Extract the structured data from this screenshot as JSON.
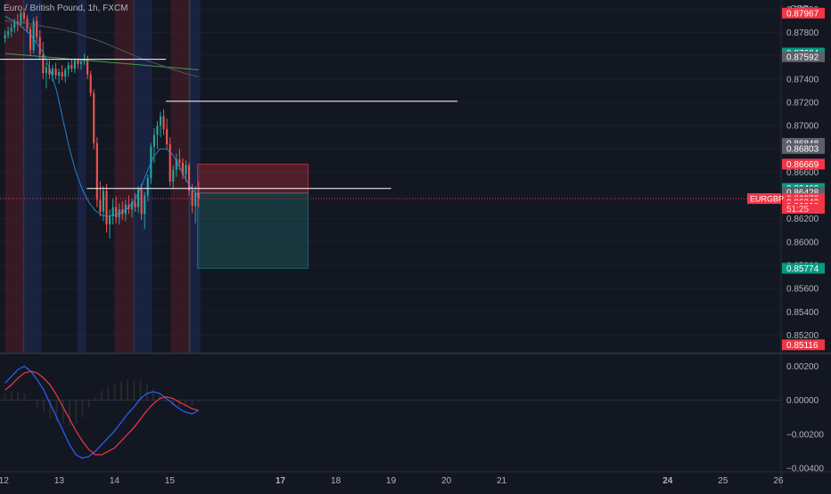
{
  "header": {
    "symbol_title": "Euro / British Pound, 1h, FXCM"
  },
  "price_axis": {
    "currency": "GBP"
  },
  "symbol_tag": "EURGBP",
  "countdown": "51:25",
  "colors": {
    "background": "#131722",
    "bull": "#26a69a",
    "bear": "#ef5350",
    "fast_ma": "#2196f3",
    "slow_ma": "#5d606b",
    "mid_ma": "#4caf50",
    "macd_line": "#2962ff",
    "signal_line": "#f23645"
  },
  "chart_data": [
    {
      "type": "candlestick",
      "title": "Euro / British Pound, 1h, FXCM",
      "ylabel": "GBP",
      "ylim": [
        0.8505,
        0.8808
      ],
      "xlim": [
        11.93,
        26.05
      ],
      "x_ticks": [
        12,
        13,
        14,
        15,
        17,
        18,
        19,
        20,
        21,
        24,
        25,
        26
      ],
      "y_ticks": [
        0.852,
        0.854,
        0.856,
        0.858,
        0.86,
        0.862,
        0.864,
        0.866,
        0.868,
        0.87,
        0.872,
        0.874,
        0.876,
        0.878,
        0.88
      ],
      "ohlc": [
        [
          0.8775,
          0.8782,
          0.8771,
          0.8778
        ],
        [
          0.8778,
          0.8785,
          0.8775,
          0.8781
        ],
        [
          0.8781,
          0.8788,
          0.8776,
          0.8784
        ],
        [
          0.8784,
          0.8792,
          0.878,
          0.8789
        ],
        [
          0.8789,
          0.8796,
          0.8781,
          0.8787
        ],
        [
          0.8787,
          0.8799,
          0.8785,
          0.8797
        ],
        [
          0.8797,
          0.8801,
          0.8788,
          0.8792
        ],
        [
          0.8792,
          0.8795,
          0.878,
          0.8783
        ],
        [
          0.8783,
          0.8786,
          0.876,
          0.8765
        ],
        [
          0.8765,
          0.8793,
          0.8762,
          0.879
        ],
        [
          0.879,
          0.8794,
          0.8772,
          0.8776
        ],
        [
          0.8776,
          0.8782,
          0.8757,
          0.8761
        ],
        [
          0.8761,
          0.8772,
          0.874,
          0.8745
        ],
        [
          0.8745,
          0.8754,
          0.8732,
          0.875
        ],
        [
          0.875,
          0.8756,
          0.874,
          0.8744
        ],
        [
          0.8744,
          0.8752,
          0.8738,
          0.8749
        ],
        [
          0.8749,
          0.8754,
          0.874,
          0.8743
        ],
        [
          0.8743,
          0.8749,
          0.8736,
          0.8746
        ],
        [
          0.8746,
          0.8752,
          0.8739,
          0.8742
        ],
        [
          0.8742,
          0.875,
          0.8737,
          0.8748
        ],
        [
          0.8748,
          0.8755,
          0.8742,
          0.8752
        ],
        [
          0.8752,
          0.8757,
          0.8746,
          0.8749
        ],
        [
          0.8749,
          0.8758,
          0.8745,
          0.8756
        ],
        [
          0.8756,
          0.8758,
          0.8749,
          0.8753
        ],
        [
          0.8753,
          0.8757,
          0.8748,
          0.8755
        ],
        [
          0.8755,
          0.8762,
          0.8752,
          0.8757
        ],
        [
          0.8757,
          0.876,
          0.874,
          0.8744
        ],
        [
          0.8744,
          0.8747,
          0.8725,
          0.8728
        ],
        [
          0.8728,
          0.8731,
          0.868,
          0.8685
        ],
        [
          0.8685,
          0.869,
          0.863,
          0.8636
        ],
        [
          0.8636,
          0.8652,
          0.8622,
          0.8626
        ],
        [
          0.8626,
          0.8648,
          0.8618,
          0.8644
        ],
        [
          0.8644,
          0.865,
          0.8608,
          0.8615
        ],
        [
          0.8615,
          0.8628,
          0.8603,
          0.8622
        ],
        [
          0.8622,
          0.8637,
          0.8615,
          0.863
        ],
        [
          0.863,
          0.8639,
          0.8616,
          0.8621
        ],
        [
          0.8621,
          0.8633,
          0.8615,
          0.8628
        ],
        [
          0.8628,
          0.8635,
          0.8619,
          0.8624
        ],
        [
          0.8624,
          0.8636,
          0.8618,
          0.8632
        ],
        [
          0.8632,
          0.864,
          0.8624,
          0.8628
        ],
        [
          0.8628,
          0.8637,
          0.8621,
          0.8634
        ],
        [
          0.8634,
          0.8642,
          0.8626,
          0.863
        ],
        [
          0.863,
          0.8648,
          0.8625,
          0.8645
        ],
        [
          0.8645,
          0.865,
          0.8619,
          0.8624
        ],
        [
          0.8624,
          0.8643,
          0.8611,
          0.864
        ],
        [
          0.864,
          0.8658,
          0.8635,
          0.8655
        ],
        [
          0.8655,
          0.8685,
          0.865,
          0.8682
        ],
        [
          0.8682,
          0.8698,
          0.8668,
          0.8692
        ],
        [
          0.8692,
          0.8704,
          0.868,
          0.87
        ],
        [
          0.87,
          0.8712,
          0.869,
          0.8708
        ],
        [
          0.8708,
          0.8714,
          0.8692,
          0.8697
        ],
        [
          0.8697,
          0.8706,
          0.868,
          0.8684
        ],
        [
          0.8684,
          0.869,
          0.8648,
          0.8652
        ],
        [
          0.8652,
          0.8666,
          0.8646,
          0.8662
        ],
        [
          0.8662,
          0.8676,
          0.8656,
          0.8671
        ],
        [
          0.8671,
          0.868,
          0.8662,
          0.8668
        ],
        [
          0.8668,
          0.8672,
          0.8654,
          0.8658
        ],
        [
          0.8658,
          0.867,
          0.8652,
          0.8666
        ],
        [
          0.8666,
          0.8668,
          0.864,
          0.8644
        ],
        [
          0.8644,
          0.865,
          0.8625,
          0.8631
        ],
        [
          0.8631,
          0.8648,
          0.8616,
          0.8642
        ],
        [
          0.8642,
          0.8652,
          0.863,
          0.8637
        ]
      ],
      "moving_averages": [
        {
          "color_key": "fast_ma",
          "values": [
            0.8794,
            0.8791,
            0.8788,
            0.8783,
            0.8778,
            0.877,
            0.8762,
            0.8748,
            0.873,
            0.8705,
            0.868,
            0.866,
            0.8645,
            0.8634,
            0.8627,
            0.8623,
            0.8622,
            0.8623,
            0.8625,
            0.8629,
            0.8635,
            0.8646,
            0.866,
            0.8673,
            0.868,
            0.868,
            0.8675,
            0.8665,
            0.8654,
            0.8645,
            0.864
          ]
        },
        {
          "color_key": "mid_ma",
          "values": [
            0.8762,
            0.8761,
            0.876,
            0.8759,
            0.8758,
            0.8757,
            0.8756,
            0.8755,
            0.8754,
            0.8753,
            0.8752,
            0.8751,
            0.875,
            0.8749,
            0.8748
          ]
        },
        {
          "color_key": "slow_ma",
          "values": [
            0.879,
            0.8789,
            0.8787,
            0.8785,
            0.8783,
            0.878,
            0.8776,
            0.8772,
            0.8767,
            0.8762,
            0.8757,
            0.8753,
            0.8749,
            0.8745,
            0.8742
          ]
        }
      ],
      "horizontal_lines": [
        {
          "price": 0.8757,
          "x_from": 11.93,
          "x_to": 14.93
        },
        {
          "price": 0.8721,
          "x_from": 14.93,
          "x_to": 20.2
        },
        {
          "price": 0.8646,
          "x_from": 13.5,
          "x_to": 19.0
        }
      ],
      "position_tool": {
        "entry": 0.8642,
        "stop": 0.86669,
        "target": 0.85774,
        "x_from": 15.5,
        "x_to": 17.5
      },
      "current_price": 0.86373,
      "session_shading": [
        {
          "from": 12.02,
          "to": 12.35,
          "tone": "red"
        },
        {
          "from": 12.35,
          "to": 12.37,
          "tone": "gray"
        },
        {
          "from": 12.37,
          "to": 12.68,
          "tone": "blue"
        },
        {
          "from": 13.33,
          "to": 13.49,
          "tone": "blue"
        },
        {
          "from": 14.0,
          "to": 14.34,
          "tone": "red"
        },
        {
          "from": 14.34,
          "to": 14.36,
          "tone": "gray"
        },
        {
          "from": 14.36,
          "to": 14.68,
          "tone": "blue"
        },
        {
          "from": 15.02,
          "to": 15.34,
          "tone": "red"
        },
        {
          "from": 15.34,
          "to": 15.37,
          "tone": "gray"
        },
        {
          "from": 15.37,
          "to": 15.55,
          "tone": "blue"
        }
      ],
      "price_labels": [
        {
          "text": "0.87967",
          "price": 0.87967,
          "tone": "red"
        },
        {
          "text": "0.87624",
          "price": 0.87624,
          "tone": "green"
        },
        {
          "text": "0.87592",
          "price": 0.87592,
          "tone": "gray"
        },
        {
          "text": "0.86848",
          "price": 0.86848,
          "tone": "gray"
        },
        {
          "text": "0.86803",
          "price": 0.86803,
          "tone": "gray"
        },
        {
          "text": "0.86669",
          "price": 0.86669,
          "tone": "red"
        },
        {
          "text": "0.86460",
          "price": 0.8646,
          "tone": "green"
        },
        {
          "text": "0.86428",
          "price": 0.86428,
          "tone": "gray"
        },
        {
          "text": "0.86373",
          "price": 0.86373,
          "tone": "red"
        },
        {
          "text": "0.86343",
          "price": 0.86343,
          "tone": "red"
        },
        {
          "text": "0.86308",
          "price": 0.86308,
          "tone": "red"
        },
        {
          "text": "0.85774",
          "price": 0.85774,
          "tone": "green"
        },
        {
          "text": "0.85116",
          "price": 0.85116,
          "tone": "red"
        }
      ]
    },
    {
      "type": "macd",
      "ylim": [
        -0.0042,
        0.0027
      ],
      "y_ticks": [
        0.002,
        0.0,
        -0.002,
        -0.004
      ],
      "macd": [
        0.001,
        0.0014,
        0.0018,
        0.002,
        0.0017,
        0.0012,
        0.0006,
        -0.0002,
        -0.001,
        -0.0018,
        -0.0026,
        -0.0032,
        -0.0034,
        -0.0033,
        -0.003,
        -0.0026,
        -0.0022,
        -0.0018,
        -0.0013,
        -0.0008,
        -0.0004,
        0.0001,
        0.0004,
        0.0005,
        0.0004,
        0.0001,
        -0.0002,
        -0.0005,
        -0.0007,
        -0.0008,
        -0.0006
      ],
      "signal": [
        0.0006,
        0.0009,
        0.0013,
        0.0016,
        0.0017,
        0.0016,
        0.0013,
        0.0009,
        0.0003,
        -0.0004,
        -0.0011,
        -0.0018,
        -0.0024,
        -0.0029,
        -0.0032,
        -0.0032,
        -0.003,
        -0.0028,
        -0.0024,
        -0.002,
        -0.0016,
        -0.0011,
        -0.0006,
        -0.0002,
        0.0001,
        0.0002,
        0.0001,
        -0.0001,
        -0.0003,
        -0.0005,
        -0.0006
      ]
    }
  ]
}
